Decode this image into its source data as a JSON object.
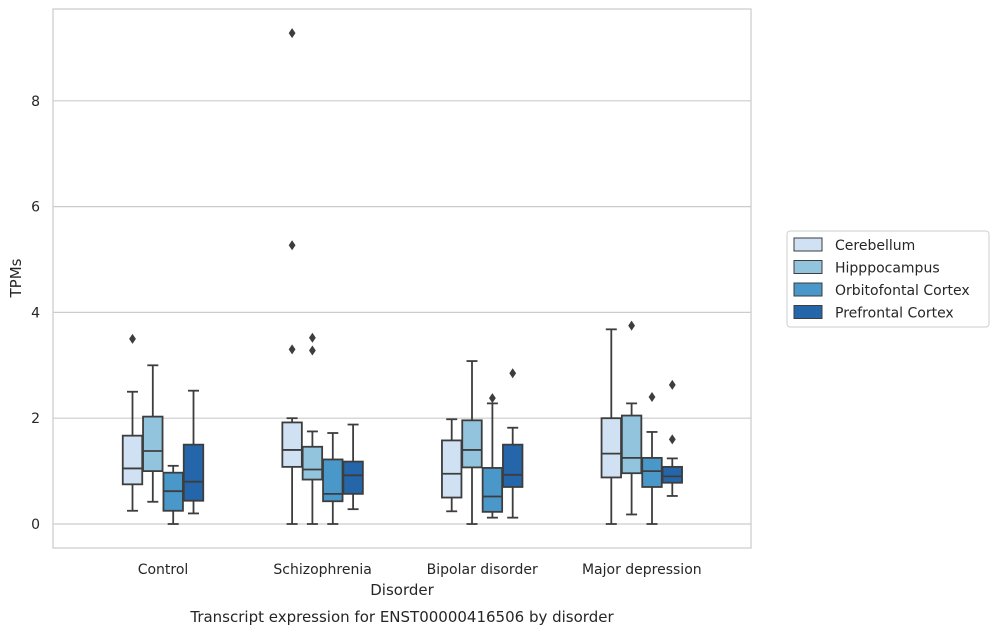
{
  "chart_data": {
    "type": "box",
    "title": "",
    "caption": "Transcript expression for ENST00000416506 by disorder",
    "xlabel": "Disorder",
    "ylabel": "TPMs",
    "ylim": [
      -0.4,
      9.75
    ],
    "yticks": [
      0,
      2,
      4,
      6,
      8
    ],
    "grid": "horizontal",
    "legend_position": "right",
    "categories": [
      "Control",
      "Schizophrenia",
      "Bipolar disorder",
      "Major depression"
    ],
    "series": [
      {
        "name": "Cerebellum",
        "color": "#cfe1f2",
        "boxes": [
          {
            "whislo": 0.25,
            "q1": 0.75,
            "med": 1.05,
            "q3": 1.67,
            "whishi": 2.5,
            "fliers": [
              3.5
            ]
          },
          {
            "whislo": 0.0,
            "q1": 1.08,
            "med": 1.4,
            "q3": 1.92,
            "whishi": 2.0,
            "fliers": [
              3.3,
              5.27,
              9.28
            ]
          },
          {
            "whislo": 0.24,
            "q1": 0.5,
            "med": 0.95,
            "q3": 1.58,
            "whishi": 1.98,
            "fliers": []
          },
          {
            "whislo": 0.0,
            "q1": 0.88,
            "med": 1.33,
            "q3": 2.0,
            "whishi": 3.68,
            "fliers": []
          }
        ]
      },
      {
        "name": "Hipppocampus",
        "color": "#93c4de",
        "boxes": [
          {
            "whislo": 0.42,
            "q1": 1.0,
            "med": 1.38,
            "q3": 2.03,
            "whishi": 3.0,
            "fliers": []
          },
          {
            "whislo": 0.0,
            "q1": 0.84,
            "med": 1.03,
            "q3": 1.46,
            "whishi": 1.75,
            "fliers": [
              3.28,
              3.52
            ]
          },
          {
            "whislo": 0.0,
            "q1": 1.07,
            "med": 1.4,
            "q3": 1.96,
            "whishi": 3.08,
            "fliers": []
          },
          {
            "whislo": 0.18,
            "q1": 0.96,
            "med": 1.25,
            "q3": 2.05,
            "whishi": 2.28,
            "fliers": [
              3.75
            ]
          }
        ]
      },
      {
        "name": "Orbitofontal Cortex",
        "color": "#4a98c9",
        "boxes": [
          {
            "whislo": 0.0,
            "q1": 0.25,
            "med": 0.62,
            "q3": 0.97,
            "whishi": 1.1,
            "fliers": []
          },
          {
            "whislo": 0.0,
            "q1": 0.43,
            "med": 0.57,
            "q3": 1.22,
            "whishi": 1.72,
            "fliers": []
          },
          {
            "whislo": 0.12,
            "q1": 0.23,
            "med": 0.52,
            "q3": 1.06,
            "whishi": 2.28,
            "fliers": [
              2.38
            ]
          },
          {
            "whislo": 0.0,
            "q1": 0.7,
            "med": 1.0,
            "q3": 1.25,
            "whishi": 1.74,
            "fliers": [
              2.4
            ]
          }
        ]
      },
      {
        "name": "Prefrontal Cortex",
        "color": "#2466a9",
        "boxes": [
          {
            "whislo": 0.2,
            "q1": 0.44,
            "med": 0.8,
            "q3": 1.5,
            "whishi": 2.52,
            "fliers": []
          },
          {
            "whislo": 0.28,
            "q1": 0.57,
            "med": 0.92,
            "q3": 1.18,
            "whishi": 1.88,
            "fliers": []
          },
          {
            "whislo": 0.12,
            "q1": 0.7,
            "med": 0.93,
            "q3": 1.5,
            "whishi": 1.82,
            "fliers": [
              2.85
            ]
          },
          {
            "whislo": 0.53,
            "q1": 0.78,
            "med": 0.9,
            "q3": 1.08,
            "whishi": 1.24,
            "fliers": [
              1.6,
              2.63
            ]
          }
        ]
      }
    ]
  }
}
